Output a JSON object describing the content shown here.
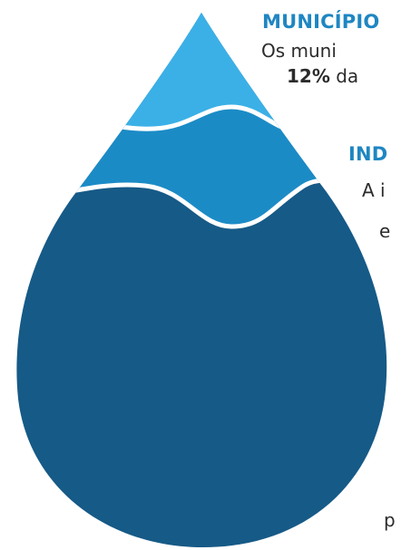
{
  "colors": {
    "top_layer": "#3bb0e6",
    "middle_layer": "#1b8bc6",
    "bottom_layer": "#165a87",
    "heading_municipios": "#1f86c2",
    "heading_industria": "#1f86c2",
    "divider": "#ffffff"
  },
  "sections": {
    "municipios": {
      "heading": "MUNICÍPIO",
      "line1": "Os muni",
      "line2_bold": "12%",
      "line2_rest": " da"
    },
    "industria": {
      "heading": "IND",
      "line1": "A i",
      "line2": "e"
    },
    "footer_fragment": "p"
  }
}
